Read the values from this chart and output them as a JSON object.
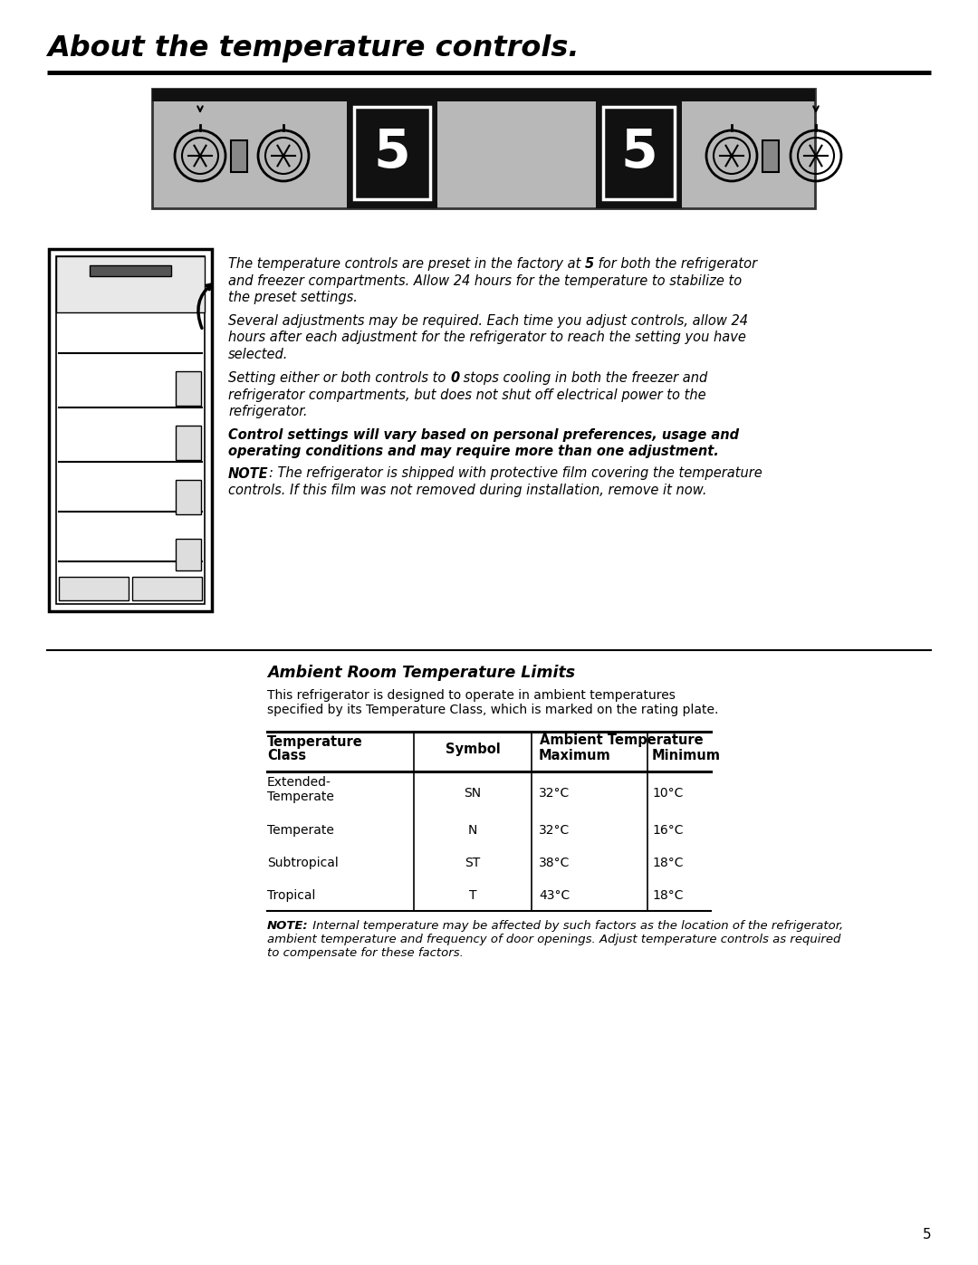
{
  "title": "About the temperature controls.",
  "page_number": "5",
  "bg_color": "#ffffff",
  "panel_bg": "#c0c0c0",
  "panel_dark": "#111111",
  "panel_border": "#444444",
  "body_font_size": 10.5,
  "para1_pre": "The temperature controls are preset in the factory at ",
  "para1_bold": "5",
  "para1_post": " for both the refrigerator",
  "para1_l2": "and freezer compartments. Allow 24 hours for the temperature to stabilize to",
  "para1_l3": "the preset settings.",
  "para2_l1": "Several adjustments may be required. Each time you adjust controls, allow 24",
  "para2_l2": "hours after each adjustment for the refrigerator to reach the setting you have",
  "para2_l3": "selected.",
  "para3_pre": "Setting either or both controls to ",
  "para3_bold": "0",
  "para3_post": " stops cooling in both the freezer and",
  "para3_l2": "refrigerator compartments, but does not shut off electrical power to the",
  "para3_l3": "refrigerator.",
  "para4_l1": "Control settings will vary based on personal preferences, usage and",
  "para4_l2": "operating conditions and may require more than one adjustment.",
  "para5_note": "NOTE",
  "para5_rest_l1": ": The refrigerator is shipped with protective film covering the temperature",
  "para5_rest_l2": "controls. If this film was not removed during installation, remove it now.",
  "section2_title": "Ambient Room Temperature Limits",
  "intro_l1": "This refrigerator is designed to operate in ambient temperatures",
  "intro_l2": "specified by its Temperature Class, which is marked on the rating plate.",
  "col_headers": [
    "Temperature\nClass",
    "Symbol",
    "Ambient Temperature",
    ""
  ],
  "col_subheaders": [
    "",
    "",
    "Maximum",
    "Minimum"
  ],
  "table_rows": [
    [
      "Extended-\nTemperate",
      "SN",
      "32°C",
      "10°C"
    ],
    [
      "Temperate",
      "N",
      "32°C",
      "16°C"
    ],
    [
      "Subtropical",
      "ST",
      "38°C",
      "18°C"
    ],
    [
      "Tropical",
      "T",
      "43°C",
      "18°C"
    ]
  ],
  "note2_l1": " Internal temperature may be affected by such factors as the location of the refrigerator,",
  "note2_l2": "ambient temperature and frequency of door openings. Adjust temperature controls as required",
  "note2_l3": "to compensate for these factors."
}
